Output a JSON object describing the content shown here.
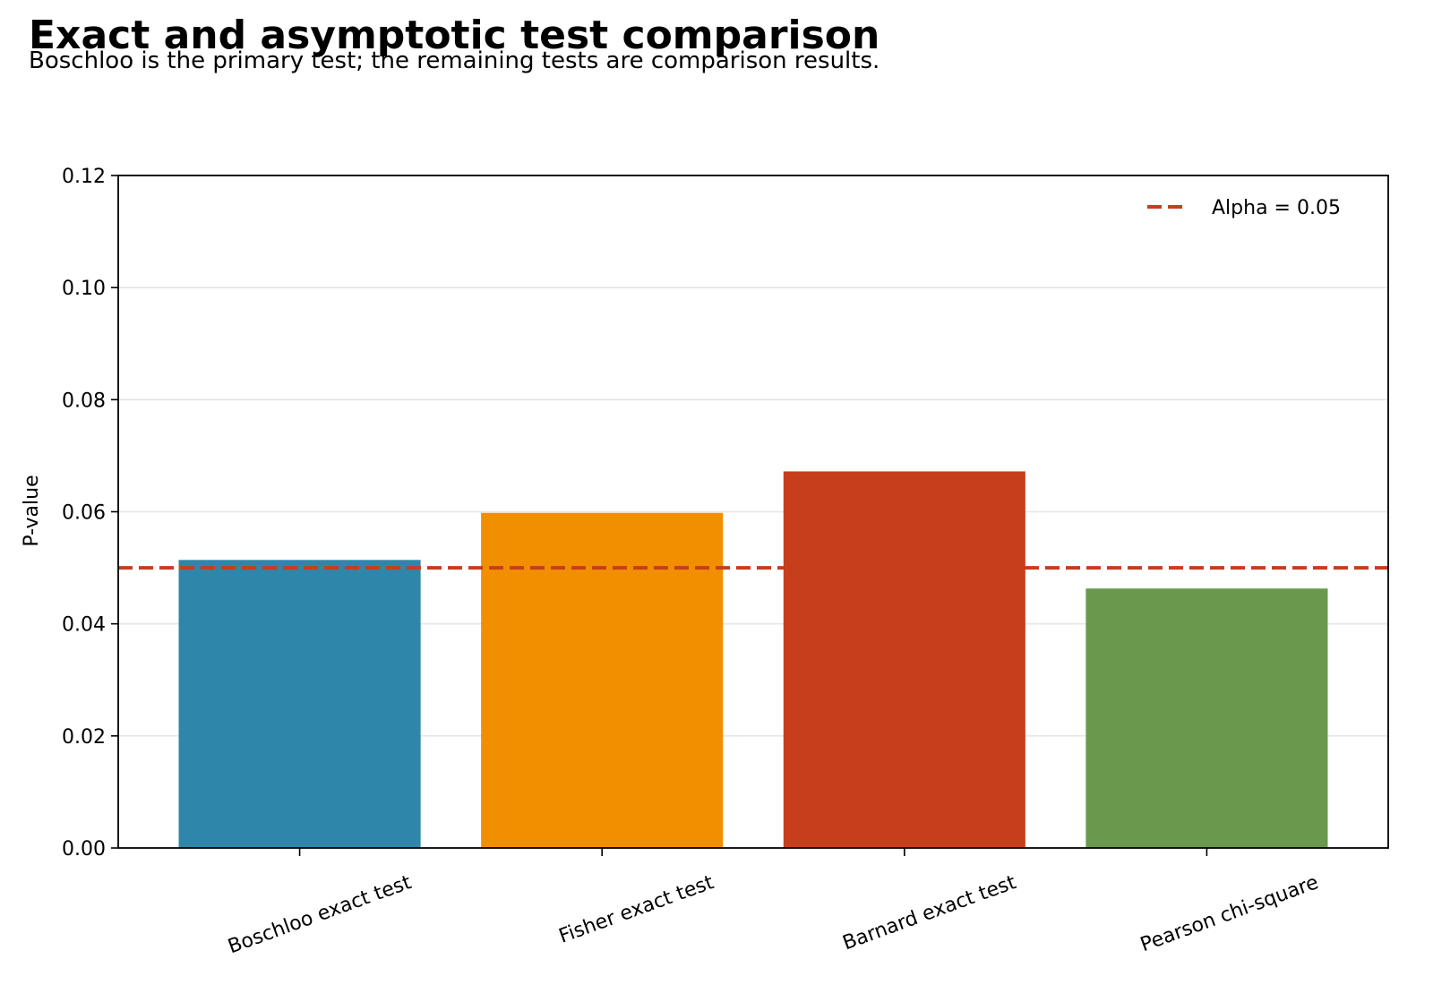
{
  "chart_data": {
    "type": "bar",
    "title": "Exact and asymptotic test comparison",
    "subtitle": "Boschloo is the primary test; the remaining tests are comparison results.",
    "xlabel": "",
    "ylabel": "P-value",
    "categories": [
      "Boschloo exact test",
      "Fisher exact test",
      "Barnard exact test",
      "Pearson chi-square"
    ],
    "values": [
      0.0514,
      0.0598,
      0.0672,
      0.0463
    ],
    "colors": [
      "#2e86ab",
      "#f18f01",
      "#c73e1d",
      "#6a994e"
    ],
    "ylim": [
      0,
      0.12
    ],
    "yticks": [
      "0.00",
      "0.02",
      "0.04",
      "0.06",
      "0.08",
      "0.10",
      "0.12"
    ],
    "grid": "y",
    "reference_line": {
      "value": 0.05,
      "label": "Alpha = 0.05",
      "color": "#c73e1d",
      "style": "dashed"
    },
    "legend_position": "top-right"
  }
}
